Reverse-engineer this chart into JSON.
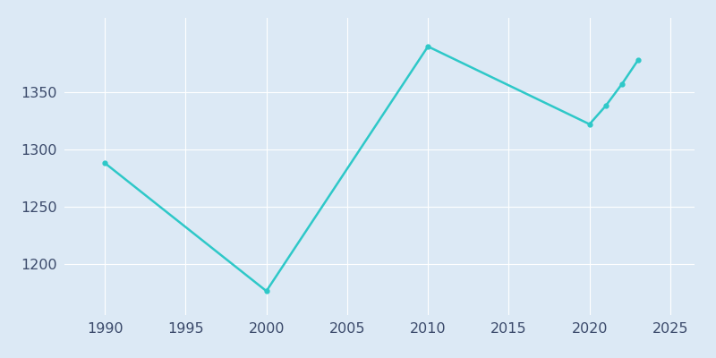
{
  "years": [
    1990,
    2000,
    2010,
    2020,
    2021,
    2022,
    2023
  ],
  "population": [
    1288,
    1176,
    1390,
    1322,
    1338,
    1357,
    1378
  ],
  "line_color": "#2ec8c8",
  "marker": "o",
  "marker_size": 3.5,
  "line_width": 1.8,
  "bg_color": "#dce9f5",
  "fig_bg_color": "#dce9f5",
  "xlim": [
    1987.5,
    2026.5
  ],
  "ylim": [
    1155,
    1415
  ],
  "xticks": [
    1990,
    1995,
    2000,
    2005,
    2010,
    2015,
    2020,
    2025
  ],
  "yticks": [
    1200,
    1250,
    1300,
    1350
  ],
  "grid_color": "#ffffff",
  "grid_linewidth": 0.8,
  "tick_label_color": "#3b4a6b",
  "tick_fontsize": 11.5
}
